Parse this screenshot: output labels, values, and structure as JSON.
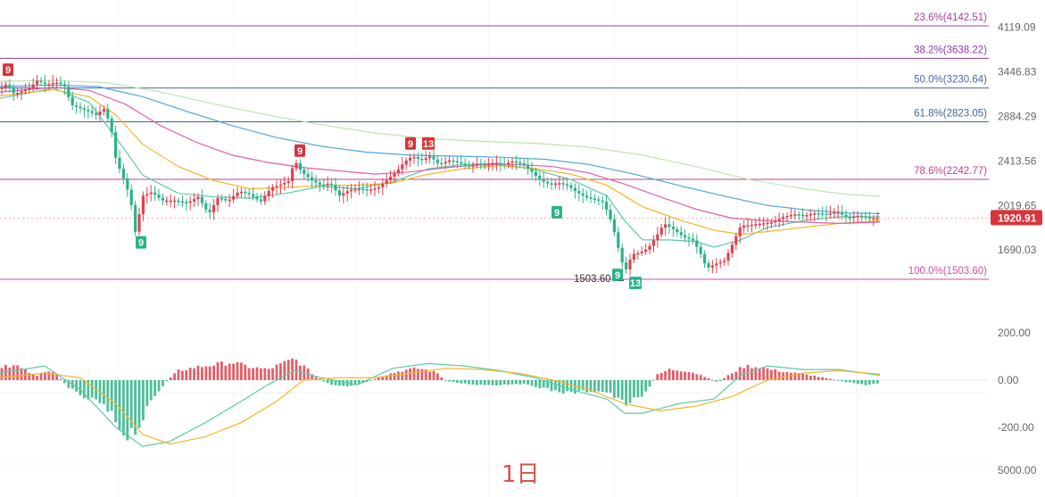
{
  "timeframe": "1日",
  "chart_data": {
    "type": "candlestick",
    "price_axis": {
      "ticks": [
        {
          "value": 4119.09,
          "label": "4119.09"
        },
        {
          "value": 3446.83,
          "label": "3446.83"
        },
        {
          "value": 2884.29,
          "label": "2884.29"
        },
        {
          "value": 2413.56,
          "label": "2413.56"
        },
        {
          "value": 2019.65,
          "label": "2019.65"
        },
        {
          "value": 1690.03,
          "label": "1690.03"
        }
      ]
    },
    "current_price": {
      "value": 1920.91,
      "label": "1920.91",
      "color": "#d9343a"
    },
    "fibonacci_levels": [
      {
        "ratio": "23.6%",
        "value": 4142.51,
        "label": "23.6%(4142.51)",
        "color": "#a23fa0"
      },
      {
        "ratio": "38.2%",
        "value": 3638.22,
        "label": "38.2%(3638.22)",
        "color": "#8a3ca8"
      },
      {
        "ratio": "50.0%",
        "value": 3230.64,
        "label": "50.0%(3230.64)",
        "color": "#4f64a8"
      },
      {
        "ratio": "61.8%",
        "value": 2823.05,
        "label": "61.8%(2823.05)",
        "color": "#3f6690"
      },
      {
        "ratio": "78.6%",
        "value": 2242.77,
        "label": "78.6%(2242.77)",
        "color": "#c2428a"
      },
      {
        "ratio": "100.0%",
        "value": 1503.6,
        "label": "100.0%(1503.60)",
        "color": "#d24d9a"
      }
    ],
    "low_annotation": {
      "value": 1503.6,
      "label": "1503.60"
    },
    "sequential_markers": [
      {
        "label": "9",
        "type": "sell",
        "price": 3330
      },
      {
        "label": "9",
        "type": "buy",
        "price": 1800
      },
      {
        "label": "9",
        "type": "sell",
        "price": 2410
      },
      {
        "label": "9",
        "type": "sell",
        "price": 2480
      },
      {
        "label": "13",
        "type": "sell",
        "price": 2480
      },
      {
        "label": "9",
        "type": "buy",
        "price": 2030
      },
      {
        "label": "9",
        "type": "buy",
        "price": 1580
      },
      {
        "label": "13",
        "type": "buy",
        "price": 1530
      }
    ],
    "close_path": [
      [
        0,
        3220
      ],
      [
        8,
        3290
      ],
      [
        16,
        3150
      ],
      [
        26,
        3200
      ],
      [
        34,
        3240
      ],
      [
        42,
        3330
      ],
      [
        52,
        3270
      ],
      [
        62,
        3310
      ],
      [
        72,
        3260
      ],
      [
        80,
        3020
      ],
      [
        90,
        2980
      ],
      [
        100,
        2940
      ],
      [
        108,
        2900
      ],
      [
        116,
        2980
      ],
      [
        124,
        2780
      ],
      [
        130,
        2420
      ],
      [
        138,
        2260
      ],
      [
        146,
        2080
      ],
      [
        152,
        1800
      ],
      [
        160,
        2100
      ],
      [
        170,
        2130
      ],
      [
        182,
        2060
      ],
      [
        196,
        2060
      ],
      [
        210,
        2040
      ],
      [
        222,
        2090
      ],
      [
        234,
        1950
      ],
      [
        244,
        2080
      ],
      [
        256,
        2060
      ],
      [
        268,
        2140
      ],
      [
        280,
        2110
      ],
      [
        292,
        2050
      ],
      [
        304,
        2170
      ],
      [
        316,
        2200
      ],
      [
        324,
        2230
      ],
      [
        330,
        2420
      ],
      [
        338,
        2310
      ],
      [
        350,
        2230
      ],
      [
        360,
        2190
      ],
      [
        370,
        2210
      ],
      [
        380,
        2100
      ],
      [
        392,
        2150
      ],
      [
        404,
        2160
      ],
      [
        414,
        2150
      ],
      [
        424,
        2170
      ],
      [
        434,
        2240
      ],
      [
        444,
        2310
      ],
      [
        454,
        2410
      ],
      [
        462,
        2460
      ],
      [
        472,
        2420
      ],
      [
        482,
        2460
      ],
      [
        492,
        2380
      ],
      [
        504,
        2420
      ],
      [
        514,
        2400
      ],
      [
        524,
        2360
      ],
      [
        534,
        2380
      ],
      [
        544,
        2370
      ],
      [
        554,
        2400
      ],
      [
        564,
        2380
      ],
      [
        574,
        2410
      ],
      [
        584,
        2390
      ],
      [
        596,
        2310
      ],
      [
        606,
        2230
      ],
      [
        616,
        2200
      ],
      [
        626,
        2210
      ],
      [
        636,
        2190
      ],
      [
        646,
        2130
      ],
      [
        656,
        2090
      ],
      [
        666,
        2070
      ],
      [
        676,
        2050
      ],
      [
        684,
        1910
      ],
      [
        690,
        1780
      ],
      [
        696,
        1620
      ],
      [
        702,
        1560
      ],
      [
        708,
        1660
      ],
      [
        716,
        1670
      ],
      [
        726,
        1700
      ],
      [
        736,
        1790
      ],
      [
        744,
        1880
      ],
      [
        756,
        1830
      ],
      [
        766,
        1780
      ],
      [
        776,
        1760
      ],
      [
        784,
        1680
      ],
      [
        792,
        1570
      ],
      [
        802,
        1600
      ],
      [
        812,
        1620
      ],
      [
        820,
        1720
      ],
      [
        830,
        1860
      ],
      [
        842,
        1870
      ],
      [
        854,
        1880
      ],
      [
        866,
        1890
      ],
      [
        878,
        1930
      ],
      [
        890,
        1950
      ],
      [
        902,
        1940
      ],
      [
        914,
        1960
      ],
      [
        926,
        1950
      ],
      [
        938,
        1970
      ],
      [
        950,
        1920
      ],
      [
        962,
        1940
      ],
      [
        974,
        1920
      ],
      [
        986,
        1920.91
      ]
    ],
    "moving_averages": [
      {
        "color": "#5fc9a8",
        "points": [
          [
            0,
            3100
          ],
          [
            60,
            3230
          ],
          [
            100,
            3050
          ],
          [
            130,
            2650
          ],
          [
            160,
            2280
          ],
          [
            200,
            2120
          ],
          [
            240,
            2090
          ],
          [
            280,
            2080
          ],
          [
            320,
            2120
          ],
          [
            360,
            2180
          ],
          [
            400,
            2160
          ],
          [
            440,
            2220
          ],
          [
            480,
            2340
          ],
          [
            520,
            2380
          ],
          [
            560,
            2390
          ],
          [
            600,
            2330
          ],
          [
            640,
            2240
          ],
          [
            680,
            2100
          ],
          [
            700,
            1900
          ],
          [
            720,
            1760
          ],
          [
            750,
            1760
          ],
          [
            780,
            1750
          ],
          [
            800,
            1710
          ],
          [
            830,
            1760
          ],
          [
            860,
            1850
          ],
          [
            900,
            1900
          ],
          [
            940,
            1930
          ],
          [
            986,
            1930
          ]
        ]
      },
      {
        "color": "#f5b62a",
        "points": [
          [
            0,
            3130
          ],
          [
            60,
            3210
          ],
          [
            100,
            3120
          ],
          [
            130,
            2900
          ],
          [
            160,
            2580
          ],
          [
            200,
            2360
          ],
          [
            240,
            2230
          ],
          [
            280,
            2160
          ],
          [
            320,
            2170
          ],
          [
            360,
            2190
          ],
          [
            400,
            2190
          ],
          [
            440,
            2210
          ],
          [
            480,
            2290
          ],
          [
            520,
            2340
          ],
          [
            560,
            2370
          ],
          [
            600,
            2340
          ],
          [
            640,
            2290
          ],
          [
            680,
            2190
          ],
          [
            720,
            2010
          ],
          [
            760,
            1910
          ],
          [
            800,
            1830
          ],
          [
            830,
            1800
          ],
          [
            860,
            1820
          ],
          [
            900,
            1850
          ],
          [
            940,
            1880
          ],
          [
            986,
            1900
          ]
        ]
      },
      {
        "color": "#e260a8",
        "points": [
          [
            0,
            3180
          ],
          [
            60,
            3240
          ],
          [
            100,
            3200
          ],
          [
            140,
            3030
          ],
          [
            180,
            2780
          ],
          [
            220,
            2600
          ],
          [
            260,
            2470
          ],
          [
            300,
            2400
          ],
          [
            340,
            2350
          ],
          [
            380,
            2320
          ],
          [
            420,
            2290
          ],
          [
            460,
            2310
          ],
          [
            500,
            2350
          ],
          [
            540,
            2380
          ],
          [
            580,
            2380
          ],
          [
            620,
            2360
          ],
          [
            660,
            2300
          ],
          [
            700,
            2200
          ],
          [
            740,
            2090
          ],
          [
            780,
            1990
          ],
          [
            820,
            1920
          ],
          [
            860,
            1900
          ],
          [
            900,
            1890
          ],
          [
            940,
            1880
          ],
          [
            986,
            1890
          ]
        ]
      },
      {
        "color": "#4fa6dc",
        "points": [
          [
            0,
            3250
          ],
          [
            60,
            3270
          ],
          [
            110,
            3250
          ],
          [
            160,
            3120
          ],
          [
            210,
            2940
          ],
          [
            260,
            2780
          ],
          [
            310,
            2650
          ],
          [
            360,
            2560
          ],
          [
            410,
            2500
          ],
          [
            460,
            2470
          ],
          [
            510,
            2460
          ],
          [
            560,
            2450
          ],
          [
            610,
            2430
          ],
          [
            660,
            2380
          ],
          [
            710,
            2290
          ],
          [
            760,
            2190
          ],
          [
            810,
            2100
          ],
          [
            860,
            2020
          ],
          [
            910,
            1980
          ],
          [
            950,
            1960
          ],
          [
            986,
            1955
          ]
        ]
      },
      {
        "color": "#bfe3b4",
        "points": [
          [
            0,
            3320
          ],
          [
            60,
            3330
          ],
          [
            120,
            3300
          ],
          [
            180,
            3180
          ],
          [
            240,
            3030
          ],
          [
            300,
            2900
          ],
          [
            360,
            2790
          ],
          [
            420,
            2700
          ],
          [
            480,
            2640
          ],
          [
            540,
            2610
          ],
          [
            600,
            2590
          ],
          [
            660,
            2550
          ],
          [
            720,
            2470
          ],
          [
            780,
            2360
          ],
          [
            840,
            2240
          ],
          [
            900,
            2160
          ],
          [
            950,
            2110
          ],
          [
            986,
            2095
          ]
        ]
      }
    ],
    "macd_axis": {
      "ticks": [
        {
          "value": 200,
          "label": "200.00"
        },
        {
          "value": 0,
          "label": "0.00"
        },
        {
          "value": -200,
          "label": "-200.00"
        }
      ]
    },
    "volume_axis_label": "5000.00",
    "macd_histogram": [
      [
        0,
        55
      ],
      [
        20,
        60
      ],
      [
        40,
        20
      ],
      [
        60,
        40
      ],
      [
        74,
        -20
      ],
      [
        90,
        -70
      ],
      [
        110,
        -90
      ],
      [
        125,
        -150
      ],
      [
        140,
        -230
      ],
      [
        155,
        -200
      ],
      [
        170,
        -90
      ],
      [
        185,
        -10
      ],
      [
        200,
        40
      ],
      [
        220,
        55
      ],
      [
        240,
        65
      ],
      [
        260,
        75
      ],
      [
        280,
        55
      ],
      [
        300,
        45
      ],
      [
        320,
        75
      ],
      [
        330,
        90
      ],
      [
        340,
        60
      ],
      [
        355,
        10
      ],
      [
        370,
        -20
      ],
      [
        390,
        -30
      ],
      [
        410,
        -10
      ],
      [
        430,
        20
      ],
      [
        450,
        40
      ],
      [
        470,
        50
      ],
      [
        490,
        30
      ],
      [
        500,
        -5
      ],
      [
        520,
        -15
      ],
      [
        540,
        -20
      ],
      [
        560,
        -20
      ],
      [
        580,
        -15
      ],
      [
        600,
        -25
      ],
      [
        620,
        -45
      ],
      [
        640,
        -55
      ],
      [
        660,
        -45
      ],
      [
        680,
        -50
      ],
      [
        700,
        -100
      ],
      [
        715,
        -80
      ],
      [
        725,
        -50
      ],
      [
        735,
        20
      ],
      [
        750,
        45
      ],
      [
        770,
        40
      ],
      [
        790,
        15
      ],
      [
        805,
        -10
      ],
      [
        820,
        30
      ],
      [
        835,
        60
      ],
      [
        850,
        55
      ],
      [
        870,
        40
      ],
      [
        890,
        30
      ],
      [
        910,
        20
      ],
      [
        930,
        5
      ],
      [
        950,
        -10
      ],
      [
        970,
        -20
      ],
      [
        986,
        -15
      ]
    ],
    "macd_lines": [
      {
        "color": "#5fc9a8",
        "points": [
          [
            0,
            30
          ],
          [
            50,
            60
          ],
          [
            90,
            -40
          ],
          [
            130,
            -200
          ],
          [
            160,
            -280
          ],
          [
            190,
            -260
          ],
          [
            230,
            -180
          ],
          [
            270,
            -90
          ],
          [
            300,
            -20
          ],
          [
            330,
            40
          ],
          [
            360,
            10
          ],
          [
            400,
            -20
          ],
          [
            440,
            50
          ],
          [
            480,
            70
          ],
          [
            520,
            60
          ],
          [
            560,
            40
          ],
          [
            600,
            10
          ],
          [
            640,
            -40
          ],
          [
            680,
            -80
          ],
          [
            700,
            -140
          ],
          [
            720,
            -140
          ],
          [
            760,
            -100
          ],
          [
            800,
            -80
          ],
          [
            830,
            20
          ],
          [
            860,
            60
          ],
          [
            900,
            45
          ],
          [
            940,
            45
          ],
          [
            986,
            20
          ]
        ]
      },
      {
        "color": "#f5b62a",
        "points": [
          [
            0,
            10
          ],
          [
            50,
            30
          ],
          [
            90,
            10
          ],
          [
            130,
            -100
          ],
          [
            160,
            -230
          ],
          [
            190,
            -270
          ],
          [
            230,
            -240
          ],
          [
            270,
            -180
          ],
          [
            310,
            -90
          ],
          [
            340,
            0
          ],
          [
            380,
            10
          ],
          [
            420,
            10
          ],
          [
            460,
            30
          ],
          [
            500,
            50
          ],
          [
            540,
            45
          ],
          [
            580,
            30
          ],
          [
            620,
            0
          ],
          [
            660,
            -40
          ],
          [
            700,
            -100
          ],
          [
            740,
            -130
          ],
          [
            780,
            -110
          ],
          [
            820,
            -70
          ],
          [
            860,
            0
          ],
          [
            900,
            30
          ],
          [
            940,
            40
          ],
          [
            986,
            25
          ]
        ]
      }
    ]
  }
}
